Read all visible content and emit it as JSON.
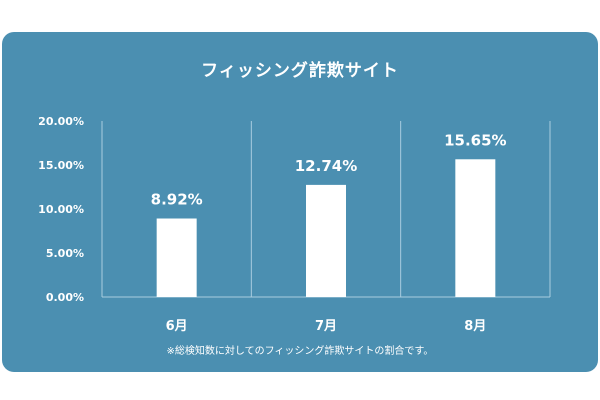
{
  "chart_data": {
    "type": "bar",
    "title": "フィッシング詐欺サイト",
    "categories": [
      "6月",
      "7月",
      "8月"
    ],
    "values": [
      8.92,
      12.74,
      15.65
    ],
    "data_labels": [
      "8.92%",
      "12.74%",
      "15.65%"
    ],
    "y_ticks": [
      "0.00%",
      "5.00%",
      "10.00%",
      "15.00%",
      "20.00%"
    ],
    "y_tick_values": [
      0,
      5,
      10,
      15,
      20
    ],
    "ylim": [
      0,
      20
    ],
    "xlabel": "",
    "ylabel": "",
    "grid": "vertical separators",
    "legend": "none",
    "colors": {
      "background": "#4b8fb1",
      "bar": "#ffffff",
      "text": "#ffffff",
      "grid": "#a9cde0"
    },
    "note": "※総検知数に対してのフィッシング詐欺サイトの割合です。"
  }
}
